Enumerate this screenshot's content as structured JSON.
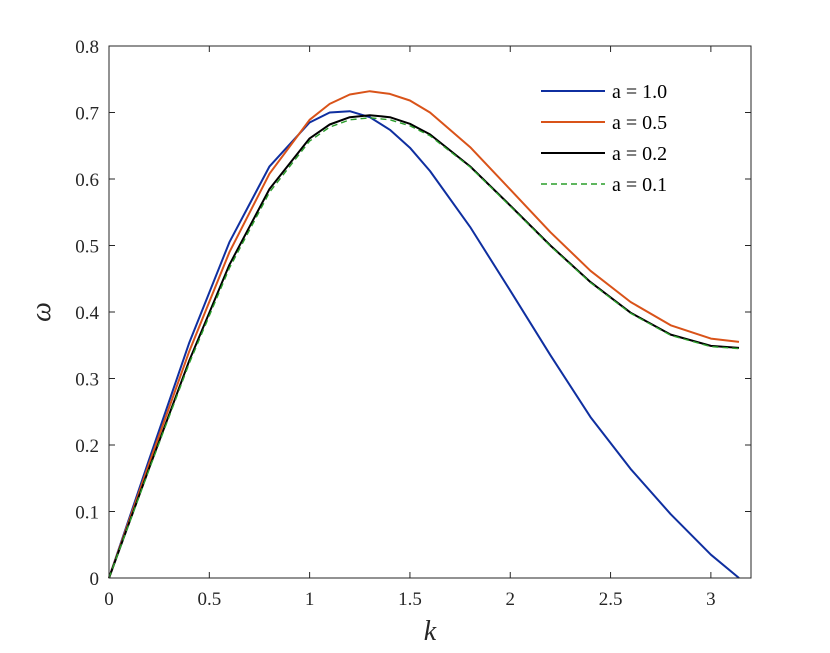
{
  "chart_data": {
    "type": "line",
    "xlabel": "k",
    "ylabel": "ω",
    "xlim": [
      0,
      3.2
    ],
    "ylim": [
      0,
      0.8
    ],
    "xticks": [
      0,
      0.5,
      1,
      1.5,
      2,
      2.5,
      3
    ],
    "xtick_labels": [
      "0",
      "0.5",
      "1",
      "1.5",
      "2",
      "2.5",
      "3"
    ],
    "yticks": [
      0,
      0.1,
      0.2,
      0.3,
      0.4,
      0.5,
      0.6,
      0.7,
      0.8
    ],
    "ytick_labels": [
      "0",
      "0.1",
      "0.2",
      "0.3",
      "0.4",
      "0.5",
      "0.6",
      "0.7",
      "0.8"
    ],
    "grid": false,
    "legend_position": "top-right",
    "series": [
      {
        "name": "a = 1.0",
        "color": "#0f2fa0",
        "style": "solid",
        "x": [
          0,
          0.2,
          0.4,
          0.6,
          0.8,
          1.0,
          1.1,
          1.2,
          1.3,
          1.4,
          1.5,
          1.6,
          1.8,
          2.0,
          2.2,
          2.4,
          2.6,
          2.8,
          3.0,
          3.14
        ],
        "y": [
          0,
          0.178,
          0.354,
          0.505,
          0.619,
          0.685,
          0.7,
          0.702,
          0.693,
          0.674,
          0.647,
          0.612,
          0.528,
          0.432,
          0.335,
          0.242,
          0.164,
          0.096,
          0.035,
          0.0
        ]
      },
      {
        "name": "a = 0.5",
        "color": "#d95319",
        "style": "solid",
        "x": [
          0,
          0.2,
          0.4,
          0.6,
          0.8,
          1.0,
          1.1,
          1.2,
          1.3,
          1.4,
          1.5,
          1.6,
          1.8,
          2.0,
          2.2,
          2.4,
          2.6,
          2.8,
          3.0,
          3.14
        ],
        "y": [
          0,
          0.172,
          0.341,
          0.49,
          0.608,
          0.689,
          0.713,
          0.727,
          0.732,
          0.728,
          0.718,
          0.7,
          0.648,
          0.584,
          0.52,
          0.462,
          0.415,
          0.38,
          0.36,
          0.355
        ]
      },
      {
        "name": "a = 0.2",
        "color": "#000000",
        "style": "solid",
        "x": [
          0,
          0.2,
          0.4,
          0.6,
          0.8,
          1.0,
          1.1,
          1.2,
          1.3,
          1.4,
          1.5,
          1.6,
          1.8,
          2.0,
          2.2,
          2.4,
          2.6,
          2.8,
          3.0,
          3.14
        ],
        "y": [
          0,
          0.165,
          0.327,
          0.471,
          0.585,
          0.661,
          0.682,
          0.693,
          0.696,
          0.693,
          0.683,
          0.667,
          0.619,
          0.56,
          0.5,
          0.445,
          0.399,
          0.366,
          0.349,
          0.346
        ]
      },
      {
        "name": "a = 0.1",
        "color": "#2a9d2a",
        "style": "dashed",
        "x": [
          0,
          0.2,
          0.4,
          0.6,
          0.8,
          1.0,
          1.1,
          1.2,
          1.3,
          1.4,
          1.5,
          1.6,
          1.8,
          2.0,
          2.2,
          2.4,
          2.6,
          2.8,
          3.0,
          3.14
        ],
        "y": [
          0,
          0.163,
          0.323,
          0.466,
          0.58,
          0.657,
          0.678,
          0.689,
          0.692,
          0.689,
          0.68,
          0.665,
          0.618,
          0.559,
          0.499,
          0.444,
          0.398,
          0.365,
          0.348,
          0.345
        ]
      }
    ]
  }
}
